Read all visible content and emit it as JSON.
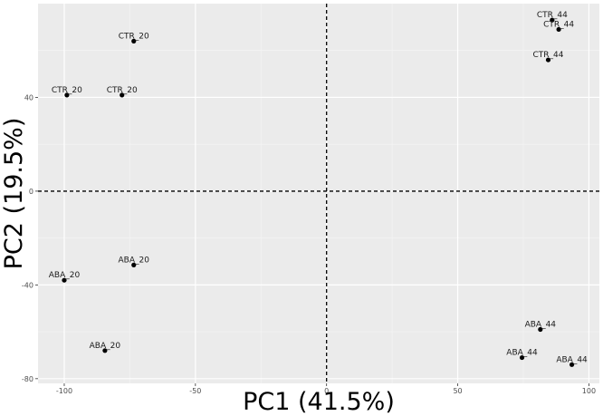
{
  "chart_data": {
    "type": "scatter",
    "xlabel": "PC1 (41.5%)",
    "ylabel": "PC2 (19.5%)",
    "xlim": [
      -110,
      104
    ],
    "ylim": [
      -82,
      80
    ],
    "x_ticks": [
      -100,
      -50,
      0,
      50,
      100
    ],
    "y_ticks": [
      -80,
      -40,
      0,
      40
    ],
    "reference_lines": {
      "x": 0,
      "y": 0,
      "style": "dashed"
    },
    "grid": true,
    "points": [
      {
        "label": "CTR_20",
        "x": -73.5,
        "y": 64
      },
      {
        "label": "CTR_20",
        "x": -99,
        "y": 41
      },
      {
        "label": "CTR_20",
        "x": -78,
        "y": 41
      },
      {
        "label": "CTR_44",
        "x": 86,
        "y": 73
      },
      {
        "label": "CTR_44",
        "x": 88.5,
        "y": 69
      },
      {
        "label": "CTR_44",
        "x": 84.5,
        "y": 56
      },
      {
        "label": "ABA_20",
        "x": -73.5,
        "y": -31.5
      },
      {
        "label": "ABA_20",
        "x": -100,
        "y": -38
      },
      {
        "label": "ABA_20",
        "x": -84.5,
        "y": -68
      },
      {
        "label": "ABA_44",
        "x": 81.5,
        "y": -59
      },
      {
        "label": "ABA_44",
        "x": 74.5,
        "y": -71
      },
      {
        "label": "ABA_44",
        "x": 93.5,
        "y": -74
      }
    ],
    "colors": {
      "panel": "#ebebeb",
      "grid_major": "#ffffff",
      "grid_minor": "#f5f5f5",
      "point": "#000000",
      "reference_line": "#000000"
    }
  }
}
